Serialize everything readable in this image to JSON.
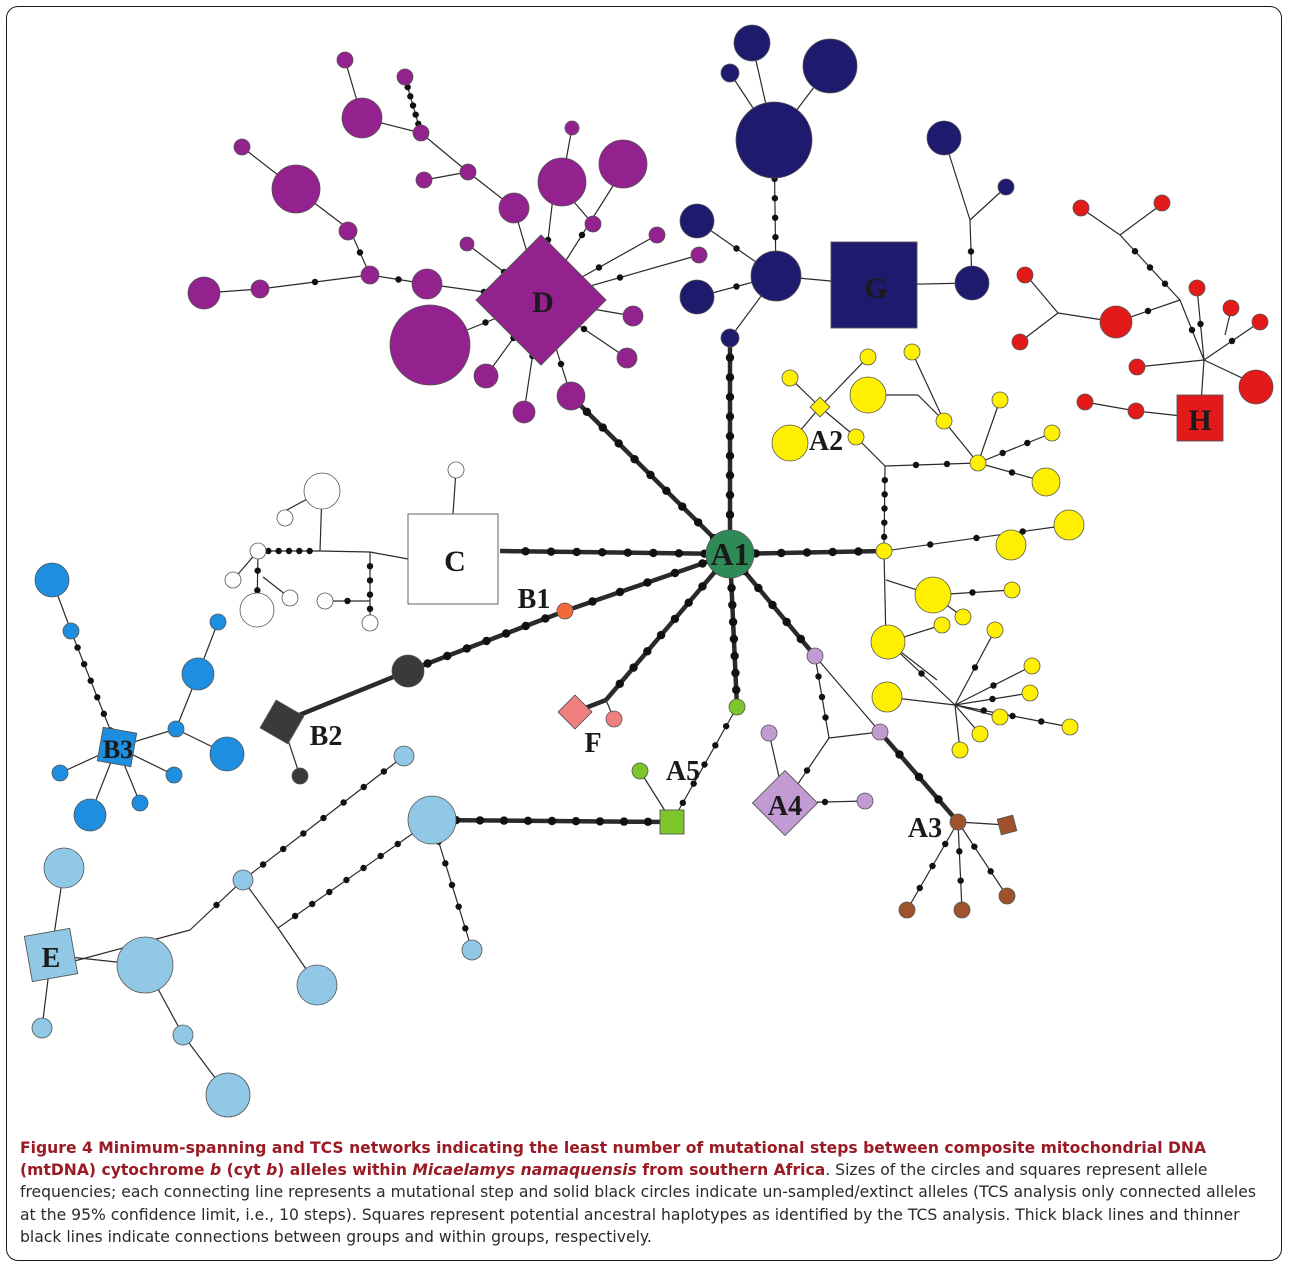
{
  "figure": {
    "caption_bold_a": "Figure 4 Minimum-spanning and TCS networks indicating the least number of mutational steps between composite mitochondrial DNA (mtDNA) cytochrome ",
    "caption_bold_b": "b",
    "caption_bold_c": " (cyt ",
    "caption_bold_d": "b",
    "caption_bold_e": ") alleles within ",
    "caption_bold_f": "Micaelamys namaquensis",
    "caption_bold_g": " from southern Africa",
    "caption_rest": ". Sizes of the circles and squares represent allele frequencies; each connecting line represents a mutational step and solid black circles indicate un-sampled/extinct alleles (TCS analysis only connected alleles at the 95% confidence limit, i.e., 10 steps). Squares represent potential ancestral haplotypes as identified by the TCS analysis. Thick black lines and thinner black lines indicate connections between groups and within groups, respectively."
  },
  "labels": {
    "A1": "A1",
    "A2": "A2",
    "A3": "A3",
    "A4": "A4",
    "A5": "A5",
    "B1": "B1",
    "B2": "B2",
    "B3": "B3",
    "C": "C",
    "D": "D",
    "E": "E",
    "F": "F",
    "G": "G",
    "H": "H"
  },
  "colors": {
    "A1": "#2e8b57",
    "A2": "#ffef00",
    "A3": "#a0522d",
    "A4": "#c39bd3",
    "A5": "#7cc62b",
    "B1": "#f26a3a",
    "B2": "#3a3a3a",
    "B3": "#1e8fe0",
    "C": "#ffffff",
    "D": "#93228f",
    "E": "#90c8e6",
    "F": "#f08080",
    "G": "#1e1a6e",
    "H": "#e21a1a",
    "mutation": "#111111"
  }
}
